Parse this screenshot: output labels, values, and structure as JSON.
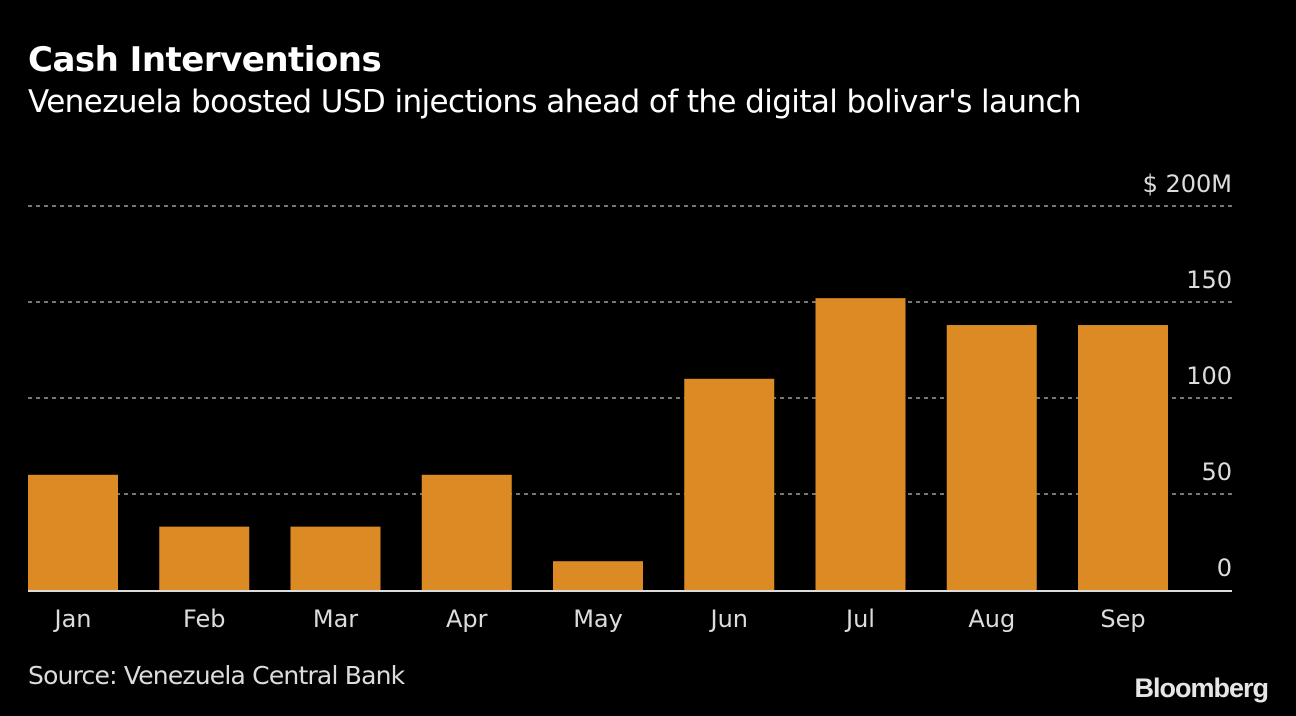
{
  "header": {
    "title": "Cash Interventions",
    "subtitle": "Venezuela boosted USD injections ahead of the digital bolivar's launch"
  },
  "footer": {
    "source": "Source: Venezuela Central Bank",
    "logo": "Bloomberg"
  },
  "colors": {
    "background": "#000000",
    "bar": "#dc8a23",
    "grid": "#777777",
    "axis": "#dcdcdc"
  },
  "chart_data": {
    "type": "bar",
    "title": "Cash Interventions",
    "subtitle": "Venezuela boosted USD injections ahead of the digital bolivar's launch",
    "xlabel": "",
    "ylabel": "",
    "categories": [
      "Jan",
      "Feb",
      "Mar",
      "Apr",
      "May",
      "Jun",
      "Jul",
      "Aug",
      "Sep"
    ],
    "values": [
      60,
      33,
      33,
      60,
      15,
      110,
      152,
      138,
      138
    ],
    "unit": "USD millions",
    "ylim": [
      0,
      200
    ],
    "yticks": [
      0,
      50,
      100,
      150,
      200
    ],
    "ytick_labels": [
      "0",
      "50",
      "100",
      "150",
      "$ 200M"
    ],
    "y_axis_side": "right",
    "grid": true,
    "grid_style": "dotted",
    "legend": "none"
  }
}
